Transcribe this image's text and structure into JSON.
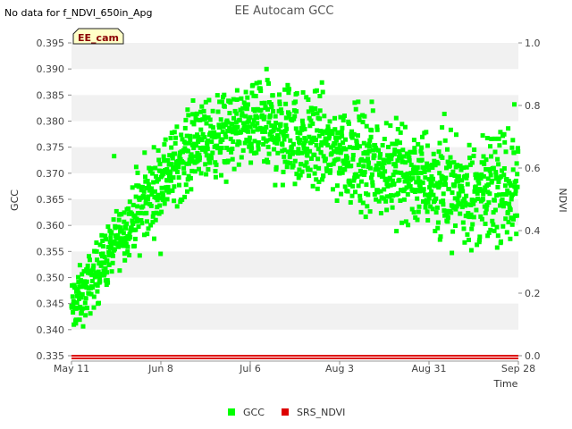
{
  "chart_data": {
    "type": "scatter",
    "title": "EE Autocam GCC",
    "note": "No data for f_NDVI_650in_Apg",
    "badge": "EE_cam",
    "xlabel": "Time",
    "ylabel_left": "GCC",
    "ylabel_right": "NDVI",
    "ylim_left": [
      0.335,
      0.395
    ],
    "ylim_right": [
      0.0,
      1.0
    ],
    "y_ticks_left": [
      "0.335",
      "0.340",
      "0.345",
      "0.350",
      "0.355",
      "0.360",
      "0.365",
      "0.370",
      "0.375",
      "0.380",
      "0.385",
      "0.390",
      "0.395"
    ],
    "y_ticks_right": [
      "0.0",
      "0.2",
      "0.4",
      "0.6",
      "0.8",
      "1.0"
    ],
    "x_range_days": [
      0,
      140
    ],
    "x_ticks": [
      {
        "label": "May 11",
        "day": 0
      },
      {
        "label": "Jun 8",
        "day": 28
      },
      {
        "label": "Jul 6",
        "day": 56
      },
      {
        "label": "Aug 3",
        "day": 84
      },
      {
        "label": "Aug 31",
        "day": 112
      },
      {
        "label": "Sep 28",
        "day": 140
      }
    ],
    "gcc_trend": [
      [
        0,
        0.344
      ],
      [
        5,
        0.348
      ],
      [
        10,
        0.353
      ],
      [
        15,
        0.358
      ],
      [
        20,
        0.362
      ],
      [
        25,
        0.366
      ],
      [
        30,
        0.37
      ],
      [
        35,
        0.373
      ],
      [
        40,
        0.376
      ],
      [
        45,
        0.377
      ],
      [
        50,
        0.378
      ],
      [
        55,
        0.379
      ],
      [
        60,
        0.379
      ],
      [
        65,
        0.378
      ],
      [
        70,
        0.377
      ],
      [
        75,
        0.376
      ],
      [
        80,
        0.375
      ],
      [
        85,
        0.374
      ],
      [
        90,
        0.373
      ],
      [
        95,
        0.372
      ],
      [
        100,
        0.371
      ],
      [
        105,
        0.37
      ],
      [
        110,
        0.369
      ],
      [
        115,
        0.368
      ],
      [
        120,
        0.367
      ],
      [
        125,
        0.366
      ],
      [
        130,
        0.366
      ],
      [
        135,
        0.367
      ],
      [
        140,
        0.367
      ]
    ],
    "series": [
      {
        "name": "GCC",
        "color": "#00ff00",
        "points_per_day": 11
      },
      {
        "name": "SRS_NDVI",
        "color": "#dd0000",
        "values": [
          0.0,
          0.0
        ]
      }
    ],
    "legend": [
      {
        "name": "GCC",
        "color": "#00ff00"
      },
      {
        "name": "SRS_NDVI",
        "color": "#dd0000"
      }
    ]
  }
}
